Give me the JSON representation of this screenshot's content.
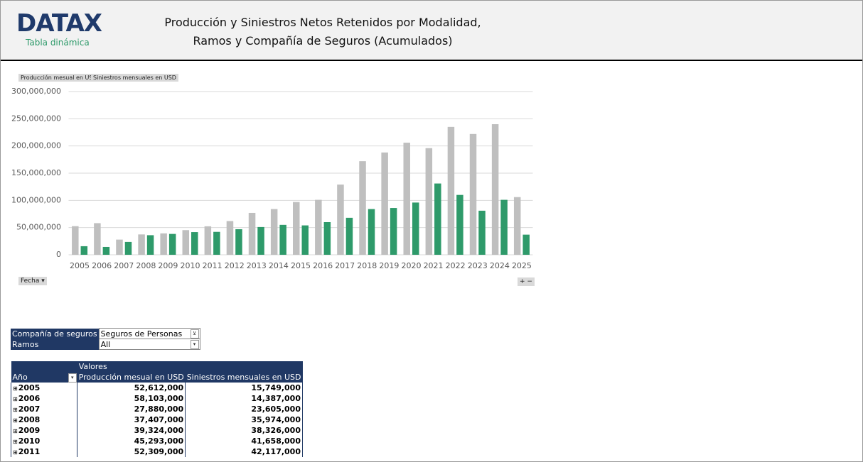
{
  "header": {
    "logo": "DATAX",
    "subtitle": "Tabla dinámica",
    "title_lines": [
      "Producción y Siniestros Netos Retenidos por Modalidad,",
      "Ramos y Compañía de Seguros (Acumulados)"
    ]
  },
  "chart_data": {
    "type": "bar",
    "categories": [
      "2005",
      "2006",
      "2007",
      "2008",
      "2009",
      "2010",
      "2011",
      "2012",
      "2013",
      "2014",
      "2015",
      "2016",
      "2017",
      "2018",
      "2019",
      "2020",
      "2021",
      "2022",
      "2023",
      "2024",
      "2025"
    ],
    "series": [
      {
        "name": "Producción mesual en USD",
        "color": "#bfbfbf",
        "values": [
          52612000,
          58103000,
          27880000,
          37407000,
          39324000,
          45293000,
          52309000,
          62000000,
          77000000,
          84000000,
          97000000,
          101000000,
          129000000,
          172000000,
          188000000,
          206000000,
          196000000,
          235000000,
          222000000,
          240000000,
          106000000
        ]
      },
      {
        "name": "Siniestros mensuales en USD",
        "color": "#2e9a6a",
        "values": [
          15749000,
          14387000,
          23605000,
          35974000,
          38326000,
          41658000,
          42117000,
          47000000,
          51000000,
          55000000,
          54000000,
          60000000,
          68000000,
          84000000,
          86000000,
          96000000,
          131000000,
          110000000,
          81000000,
          101000000,
          37000000
        ]
      }
    ],
    "ylim": [
      0,
      300000000
    ],
    "yticks": [
      0,
      {
        "value": 50000000,
        "label": "50,000,000"
      },
      {
        "value": 100000000,
        "label": "100,000,000"
      },
      {
        "value": 150000000,
        "label": "150,000,000"
      },
      {
        "value": 200000000,
        "label": "200,000,000"
      },
      {
        "value": 250000000,
        "label": "250,000,000"
      },
      {
        "value": 300000000,
        "label": "300,000,000"
      }
    ],
    "grid": true,
    "field_button": "Fecha"
  },
  "filters": {
    "rows": [
      [
        "Compañía de seguros",
        "Seguros de Personas"
      ],
      [
        "Ramos",
        "All"
      ]
    ]
  },
  "table": {
    "values_label": "Valores",
    "columns": [
      "Año",
      "Producción mesual en USD",
      "Siniestros mensuales en USD"
    ],
    "rows": [
      [
        "2005",
        "52,612,000",
        "15,749,000"
      ],
      [
        "2006",
        "58,103,000",
        "14,387,000"
      ],
      [
        "2007",
        "27,880,000",
        "23,605,000"
      ],
      [
        "2008",
        "37,407,000",
        "35,974,000"
      ],
      [
        "2009",
        "39,324,000",
        "38,326,000"
      ],
      [
        "2010",
        "45,293,000",
        "41,658,000"
      ],
      [
        "2011",
        "52,309,000",
        "42,117,000"
      ]
    ]
  }
}
